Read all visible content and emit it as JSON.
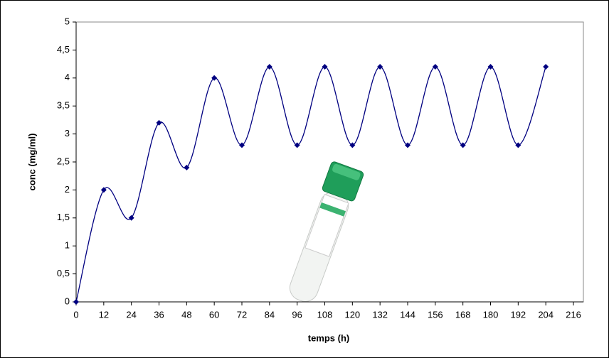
{
  "chart_data": {
    "type": "line",
    "x_label": "temps (h)",
    "y_label": "conc (mg/ml)",
    "x": [
      0,
      12,
      24,
      36,
      48,
      60,
      72,
      84,
      96,
      108,
      120,
      132,
      144,
      156,
      168,
      180,
      192,
      204
    ],
    "series": [
      {
        "color": "#000080",
        "values": [
          0,
          2,
          1.5,
          3.2,
          2.4,
          4,
          2.8,
          4.2,
          2.8,
          4.2,
          2.8,
          4.2,
          2.8,
          4.2,
          2.8,
          4.2,
          2.8,
          4.2
        ]
      }
    ],
    "smooth": true,
    "xlim": [
      0,
      216
    ],
    "xticks": [
      0,
      12,
      24,
      36,
      48,
      60,
      72,
      84,
      96,
      108,
      120,
      132,
      144,
      156,
      168,
      180,
      192,
      204,
      216
    ],
    "ylim": [
      0,
      5
    ],
    "yticks": [
      0,
      {
        "value": 0.5,
        "label": "0,5"
      },
      1,
      {
        "value": 1.5,
        "label": "1,5"
      },
      2,
      {
        "value": 2.5,
        "label": "2,5"
      },
      3,
      {
        "value": 3.5,
        "label": "3,5"
      },
      4,
      {
        "value": 4.5,
        "label": "4,5"
      },
      5
    ]
  }
}
